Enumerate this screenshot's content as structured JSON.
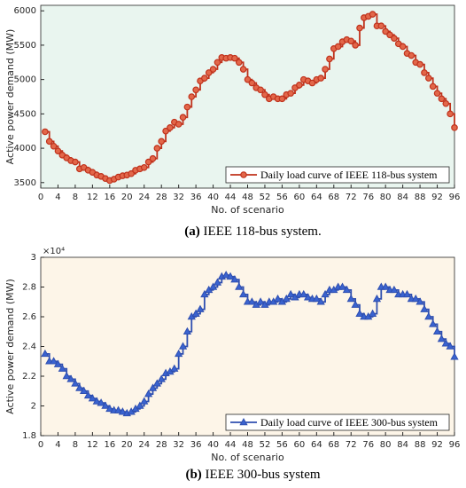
{
  "chart_data": [
    {
      "type": "step",
      "caption_label": "(a)",
      "caption": "IEEE 118-bus system.",
      "xlabel": "No. of scenario",
      "ylabel": "Active power demand (MW)",
      "xlim": [
        0,
        96
      ],
      "xticks": [
        0,
        4,
        8,
        12,
        16,
        20,
        24,
        28,
        32,
        36,
        40,
        44,
        48,
        52,
        56,
        60,
        64,
        68,
        72,
        76,
        80,
        84,
        88,
        92,
        96
      ],
      "ylim": [
        3420,
        6080
      ],
      "yticks": [
        3500,
        4000,
        4500,
        5000,
        5500,
        6000
      ],
      "legend": "lower right",
      "marker": "circle",
      "background": "#e9f5ef",
      "x": [
        1,
        2,
        3,
        4,
        5,
        6,
        7,
        8,
        9,
        10,
        11,
        12,
        13,
        14,
        15,
        16,
        17,
        18,
        19,
        20,
        21,
        22,
        23,
        24,
        25,
        26,
        27,
        28,
        29,
        30,
        31,
        32,
        33,
        34,
        35,
        36,
        37,
        38,
        39,
        40,
        41,
        42,
        43,
        44,
        45,
        46,
        47,
        48,
        49,
        50,
        51,
        52,
        53,
        54,
        55,
        56,
        57,
        58,
        59,
        60,
        61,
        62,
        63,
        64,
        65,
        66,
        67,
        68,
        69,
        70,
        71,
        72,
        73,
        74,
        75,
        76,
        77,
        78,
        79,
        80,
        81,
        82,
        83,
        84,
        85,
        86,
        87,
        88,
        89,
        90,
        91,
        92,
        93,
        94,
        95,
        96
      ],
      "series": [
        {
          "name": "Daily load curve of IEEE 118-bus system",
          "color": "#c0321c",
          "marker_fill": "#e2674a",
          "values": [
            4240,
            4100,
            4030,
            3960,
            3900,
            3860,
            3820,
            3800,
            3700,
            3720,
            3680,
            3650,
            3610,
            3590,
            3560,
            3530,
            3550,
            3580,
            3600,
            3610,
            3630,
            3680,
            3700,
            3720,
            3800,
            3850,
            4000,
            4100,
            4250,
            4300,
            4380,
            4350,
            4450,
            4600,
            4750,
            4850,
            4980,
            5020,
            5100,
            5150,
            5250,
            5320,
            5310,
            5320,
            5310,
            5250,
            5150,
            5000,
            4950,
            4880,
            4850,
            4780,
            4720,
            4750,
            4720,
            4720,
            4780,
            4800,
            4880,
            4920,
            5000,
            4980,
            4950,
            5000,
            5020,
            5150,
            5300,
            5450,
            5480,
            5550,
            5580,
            5560,
            5500,
            5750,
            5900,
            5920,
            5950,
            5780,
            5780,
            5700,
            5650,
            5600,
            5520,
            5480,
            5380,
            5350,
            5250,
            5220,
            5100,
            5020,
            4900,
            4800,
            4720,
            4650,
            4500,
            4300
          ]
        }
      ]
    },
    {
      "type": "step",
      "caption_label": "(b)",
      "caption": "IEEE 300-bus system",
      "xlabel": "No. of scenario",
      "ylabel": "Active power demand (MW)",
      "yscale_label": "×10⁴",
      "xlim": [
        0,
        96
      ],
      "xticks": [
        0,
        4,
        8,
        12,
        16,
        20,
        24,
        28,
        32,
        36,
        40,
        44,
        48,
        52,
        56,
        60,
        64,
        68,
        72,
        76,
        80,
        84,
        88,
        92,
        96
      ],
      "ylim": [
        1.8,
        3
      ],
      "yticks": [
        1.8,
        2,
        2.2,
        2.4,
        2.6,
        2.8,
        3
      ],
      "legend": "lower right",
      "marker": "triangle",
      "background": "#fdf5e8",
      "x": [
        1,
        2,
        3,
        4,
        5,
        6,
        7,
        8,
        9,
        10,
        11,
        12,
        13,
        14,
        15,
        16,
        17,
        18,
        19,
        20,
        21,
        22,
        23,
        24,
        25,
        26,
        27,
        28,
        29,
        30,
        31,
        32,
        33,
        34,
        35,
        36,
        37,
        38,
        39,
        40,
        41,
        42,
        43,
        44,
        45,
        46,
        47,
        48,
        49,
        50,
        51,
        52,
        53,
        54,
        55,
        56,
        57,
        58,
        59,
        60,
        61,
        62,
        63,
        64,
        65,
        66,
        67,
        68,
        69,
        70,
        71,
        72,
        73,
        74,
        75,
        76,
        77,
        78,
        79,
        80,
        81,
        82,
        83,
        84,
        85,
        86,
        87,
        88,
        89,
        90,
        91,
        92,
        93,
        94,
        95,
        96
      ],
      "series": [
        {
          "name": "Daily load curve of IEEE 300-bus system",
          "color": "#2f4fb0",
          "marker_fill": "#3a63d0",
          "values": [
            2.35,
            2.3,
            2.3,
            2.28,
            2.25,
            2.2,
            2.18,
            2.15,
            2.12,
            2.1,
            2.07,
            2.05,
            2.03,
            2.02,
            2.0,
            1.98,
            1.97,
            1.97,
            1.96,
            1.95,
            1.96,
            1.98,
            2.0,
            2.03,
            2.08,
            2.12,
            2.15,
            2.18,
            2.22,
            2.23,
            2.25,
            2.35,
            2.4,
            2.5,
            2.6,
            2.62,
            2.65,
            2.75,
            2.78,
            2.8,
            2.83,
            2.87,
            2.88,
            2.87,
            2.85,
            2.8,
            2.75,
            2.7,
            2.7,
            2.68,
            2.7,
            2.68,
            2.7,
            2.7,
            2.72,
            2.7,
            2.72,
            2.75,
            2.73,
            2.75,
            2.75,
            2.73,
            2.72,
            2.72,
            2.7,
            2.75,
            2.78,
            2.78,
            2.8,
            2.8,
            2.78,
            2.72,
            2.68,
            2.62,
            2.6,
            2.6,
            2.62,
            2.72,
            2.8,
            2.8,
            2.78,
            2.78,
            2.75,
            2.75,
            2.75,
            2.72,
            2.72,
            2.7,
            2.65,
            2.6,
            2.55,
            2.5,
            2.45,
            2.42,
            2.4,
            2.33
          ]
        }
      ]
    }
  ]
}
